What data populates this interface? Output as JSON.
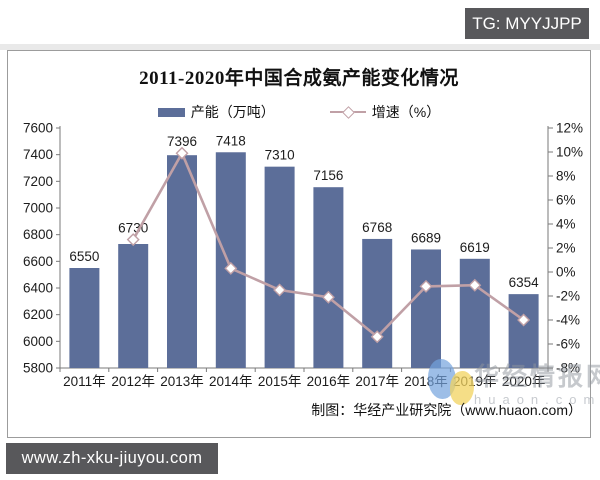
{
  "overlays": {
    "tg_badge": "TG: MYYJJPP",
    "url_badge": "www.zh-xku-jiuyou.com"
  },
  "chart_data": {
    "type": "combo-bar-line",
    "title": "2011-2020年中国合成氨产能变化情况",
    "categories": [
      "2011年",
      "2012年",
      "2013年",
      "2014年",
      "2015年",
      "2016年",
      "2017年",
      "2018年",
      "2019年",
      "2020年"
    ],
    "series": [
      {
        "name": "产能（万吨）",
        "type": "bar",
        "axis": "left",
        "color": "#5c6e99",
        "values": [
          6550,
          6730,
          7396,
          7418,
          7310,
          7156,
          6768,
          6689,
          6619,
          6354
        ]
      },
      {
        "name": "增速（%）",
        "type": "line",
        "axis": "right",
        "color": "#c0a0a6",
        "marker": "open-diamond",
        "values": [
          null,
          2.7,
          9.9,
          0.3,
          -1.5,
          -2.1,
          -5.4,
          -1.2,
          -1.1,
          -4.0
        ]
      }
    ],
    "left_axis": {
      "min": 5800,
      "max": 7600,
      "step": 200,
      "ticks": [
        "7600",
        "7400",
        "7200",
        "7000",
        "6800",
        "6600",
        "6400",
        "6200",
        "6000",
        "5800"
      ]
    },
    "right_axis": {
      "min": -8,
      "max": 12,
      "step": 2,
      "ticks": [
        "12%",
        "10%",
        "8%",
        "6%",
        "4%",
        "2%",
        "0%",
        "-2%",
        "-4%",
        "-6%",
        "-8%"
      ]
    },
    "legend_position": "top",
    "grid": false,
    "bar_labels_visible": true
  },
  "credit": "制图：华经产业研究院（www.huaon.com）",
  "watermark": {
    "brand": "华经情报网",
    "domain": "huaon.com",
    "logo_colors": {
      "blue": "#74a3dd",
      "yellow": "#f2d35f"
    }
  }
}
